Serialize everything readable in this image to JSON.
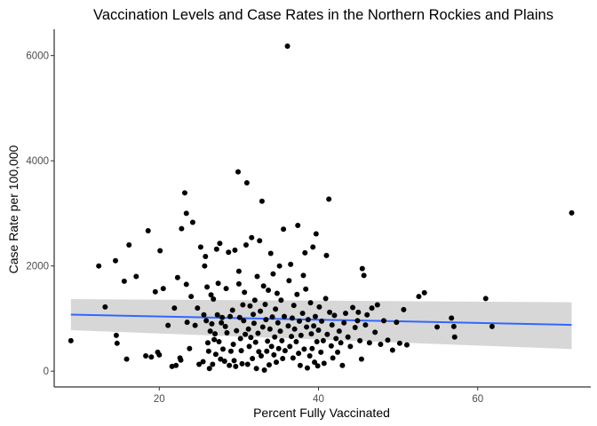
{
  "chart_data": {
    "type": "scatter",
    "title": "Vaccination Levels and Case Rates in the Northern Rockies and Plains",
    "xlabel": "Percent Fully Vaccinated",
    "ylabel": "Case Rate per 100,000",
    "xlim": [
      6.8,
      74.2
    ],
    "ylim": [
      -300,
      6500
    ],
    "x_ticks": [
      20,
      40,
      60
    ],
    "y_ticks": [
      0,
      2000,
      4000,
      6000
    ],
    "grid": false,
    "legend": "none",
    "colors": {
      "points": "#000000",
      "trend_line": "#3366FF",
      "confidence_band": "#D3D3D3"
    },
    "trend_line": {
      "method": "linear fit",
      "x": [
        8.9,
        71.8
      ],
      "y": [
        1075,
        880
      ],
      "ci_lower": [
        780,
        420
      ],
      "ci_upper": [
        1370,
        1310
      ]
    },
    "points": [
      [
        8.9,
        580
      ],
      [
        12.4,
        2000
      ],
      [
        13.2,
        1220
      ],
      [
        14.5,
        2100
      ],
      [
        14.6,
        680
      ],
      [
        14.7,
        530
      ],
      [
        15.6,
        1710
      ],
      [
        15.9,
        230
      ],
      [
        16.2,
        2400
      ],
      [
        17.1,
        1800
      ],
      [
        18.3,
        290
      ],
      [
        18.6,
        2670
      ],
      [
        19.0,
        270
      ],
      [
        19.5,
        1510
      ],
      [
        19.8,
        360
      ],
      [
        20.0,
        310
      ],
      [
        20.1,
        2290
      ],
      [
        20.5,
        1570
      ],
      [
        21.1,
        870
      ],
      [
        21.6,
        90
      ],
      [
        21.9,
        1200
      ],
      [
        22.1,
        110
      ],
      [
        22.3,
        1780
      ],
      [
        22.6,
        250
      ],
      [
        22.7,
        210
      ],
      [
        22.8,
        2710
      ],
      [
        23.2,
        3390
      ],
      [
        23.4,
        3000
      ],
      [
        23.4,
        1650
      ],
      [
        23.5,
        930
      ],
      [
        23.8,
        430
      ],
      [
        24.0,
        1420
      ],
      [
        24.2,
        2830
      ],
      [
        24.5,
        870
      ],
      [
        24.8,
        1200
      ],
      [
        25.0,
        130
      ],
      [
        25.2,
        2360
      ],
      [
        25.5,
        180
      ],
      [
        25.6,
        1070
      ],
      [
        25.7,
        2000
      ],
      [
        25.8,
        2180
      ],
      [
        25.9,
        960
      ],
      [
        26.0,
        1600
      ],
      [
        26.1,
        540
      ],
      [
        26.2,
        380
      ],
      [
        26.3,
        50
      ],
      [
        26.4,
        760
      ],
      [
        26.5,
        1450
      ],
      [
        26.6,
        900
      ],
      [
        26.7,
        130
      ],
      [
        26.8,
        1370
      ],
      [
        26.9,
        600
      ],
      [
        27.0,
        710
      ],
      [
        27.1,
        320
      ],
      [
        27.2,
        2320
      ],
      [
        27.3,
        1070
      ],
      [
        27.4,
        1670
      ],
      [
        27.5,
        560
      ],
      [
        27.6,
        2430
      ],
      [
        27.7,
        230
      ],
      [
        27.8,
        920
      ],
      [
        27.9,
        1020
      ],
      [
        28.0,
        420
      ],
      [
        28.2,
        190
      ],
      [
        28.3,
        850
      ],
      [
        28.4,
        1570
      ],
      [
        28.5,
        730
      ],
      [
        28.7,
        2260
      ],
      [
        28.8,
        110
      ],
      [
        28.9,
        1040
      ],
      [
        29.0,
        380
      ],
      [
        29.2,
        1160
      ],
      [
        29.3,
        510
      ],
      [
        29.4,
        200
      ],
      [
        29.5,
        2300
      ],
      [
        29.6,
        90
      ],
      [
        29.7,
        770
      ],
      [
        29.9,
        3790
      ],
      [
        30.0,
        1900
      ],
      [
        30.0,
        1660
      ],
      [
        30.1,
        1020
      ],
      [
        30.2,
        620
      ],
      [
        30.3,
        390
      ],
      [
        30.4,
        140
      ],
      [
        30.5,
        1260
      ],
      [
        30.6,
        960
      ],
      [
        30.7,
        1500
      ],
      [
        30.8,
        700
      ],
      [
        30.9,
        2400
      ],
      [
        31.0,
        3580
      ],
      [
        31.1,
        130
      ],
      [
        31.2,
        800
      ],
      [
        31.3,
        470
      ],
      [
        31.4,
        1240
      ],
      [
        31.5,
        640
      ],
      [
        31.6,
        2540
      ],
      [
        31.7,
        240
      ],
      [
        31.8,
        1080
      ],
      [
        31.9,
        910
      ],
      [
        32.0,
        1350
      ],
      [
        32.1,
        550
      ],
      [
        32.2,
        50
      ],
      [
        32.3,
        1800
      ],
      [
        32.4,
        720
      ],
      [
        32.5,
        370
      ],
      [
        32.6,
        2480
      ],
      [
        32.7,
        1140
      ],
      [
        32.8,
        290
      ],
      [
        32.9,
        3230
      ],
      [
        33.0,
        840
      ],
      [
        33.1,
        1620
      ],
      [
        33.2,
        20
      ],
      [
        33.3,
        1270
      ],
      [
        33.4,
        980
      ],
      [
        33.5,
        380
      ],
      [
        33.6,
        570
      ],
      [
        33.7,
        1540
      ],
      [
        33.8,
        120
      ],
      [
        33.9,
        800
      ],
      [
        34.0,
        2240
      ],
      [
        34.1,
        470
      ],
      [
        34.2,
        1030
      ],
      [
        34.3,
        1850
      ],
      [
        34.4,
        310
      ],
      [
        34.5,
        650
      ],
      [
        34.6,
        1180
      ],
      [
        34.7,
        170
      ],
      [
        34.8,
        1480
      ],
      [
        34.9,
        920
      ],
      [
        35.0,
        430
      ],
      [
        35.1,
        2000
      ],
      [
        35.2,
        760
      ],
      [
        35.3,
        1350
      ],
      [
        35.4,
        580
      ],
      [
        35.5,
        240
      ],
      [
        35.6,
        2700
      ],
      [
        35.7,
        1040
      ],
      [
        35.8,
        390
      ],
      [
        36.1,
        6180
      ],
      [
        36.2,
        860
      ],
      [
        36.3,
        1720
      ],
      [
        36.4,
        470
      ],
      [
        36.5,
        2030
      ],
      [
        36.6,
        660
      ],
      [
        36.7,
        1010
      ],
      [
        36.8,
        250
      ],
      [
        36.9,
        1250
      ],
      [
        37.0,
        800
      ],
      [
        37.2,
        560
      ],
      [
        37.3,
        1460
      ],
      [
        37.4,
        2770
      ],
      [
        37.5,
        340
      ],
      [
        37.6,
        950
      ],
      [
        37.7,
        110
      ],
      [
        37.8,
        680
      ],
      [
        38.0,
        1100
      ],
      [
        38.1,
        1820
      ],
      [
        38.2,
        420
      ],
      [
        38.3,
        2250
      ],
      [
        38.4,
        1560
      ],
      [
        38.5,
        840
      ],
      [
        38.6,
        60
      ],
      [
        38.7,
        980
      ],
      [
        38.9,
        290
      ],
      [
        39.0,
        1300
      ],
      [
        39.1,
        710
      ],
      [
        39.2,
        430
      ],
      [
        39.3,
        2360
      ],
      [
        39.4,
        860
      ],
      [
        39.5,
        170
      ],
      [
        39.6,
        1040
      ],
      [
        39.7,
        2610
      ],
      [
        39.8,
        560
      ],
      [
        39.9,
        100
      ],
      [
        40.0,
        780
      ],
      [
        40.1,
        1220
      ],
      [
        40.3,
        360
      ],
      [
        40.4,
        950
      ],
      [
        40.6,
        580
      ],
      [
        40.7,
        150
      ],
      [
        40.9,
        1380
      ],
      [
        41.0,
        2200
      ],
      [
        41.1,
        700
      ],
      [
        41.3,
        3270
      ],
      [
        41.4,
        1120
      ],
      [
        41.6,
        480
      ],
      [
        41.7,
        880
      ],
      [
        41.8,
        250
      ],
      [
        42.0,
        1060
      ],
      [
        42.2,
        620
      ],
      [
        42.4,
        360
      ],
      [
        42.6,
        760
      ],
      [
        42.8,
        540
      ],
      [
        43.0,
        110
      ],
      [
        43.2,
        920
      ],
      [
        43.4,
        1100
      ],
      [
        43.7,
        650
      ],
      [
        44.0,
        470
      ],
      [
        44.3,
        1210
      ],
      [
        44.6,
        830
      ],
      [
        44.9,
        960
      ],
      [
        45.0,
        1120
      ],
      [
        45.2,
        580
      ],
      [
        45.4,
        230
      ],
      [
        45.5,
        1950
      ],
      [
        45.7,
        1820
      ],
      [
        45.9,
        880
      ],
      [
        46.1,
        1070
      ],
      [
        46.4,
        540
      ],
      [
        46.7,
        1200
      ],
      [
        47.1,
        740
      ],
      [
        47.4,
        1260
      ],
      [
        47.8,
        510
      ],
      [
        48.2,
        960
      ],
      [
        48.7,
        590
      ],
      [
        49.3,
        400
      ],
      [
        49.8,
        930
      ],
      [
        50.2,
        530
      ],
      [
        50.7,
        1170
      ],
      [
        51.1,
        500
      ],
      [
        52.6,
        1420
      ],
      [
        53.3,
        1490
      ],
      [
        54.9,
        840
      ],
      [
        56.7,
        1010
      ],
      [
        57.0,
        850
      ],
      [
        57.1,
        650
      ],
      [
        61.0,
        1380
      ],
      [
        61.8,
        850
      ],
      [
        71.8,
        3010
      ]
    ]
  }
}
